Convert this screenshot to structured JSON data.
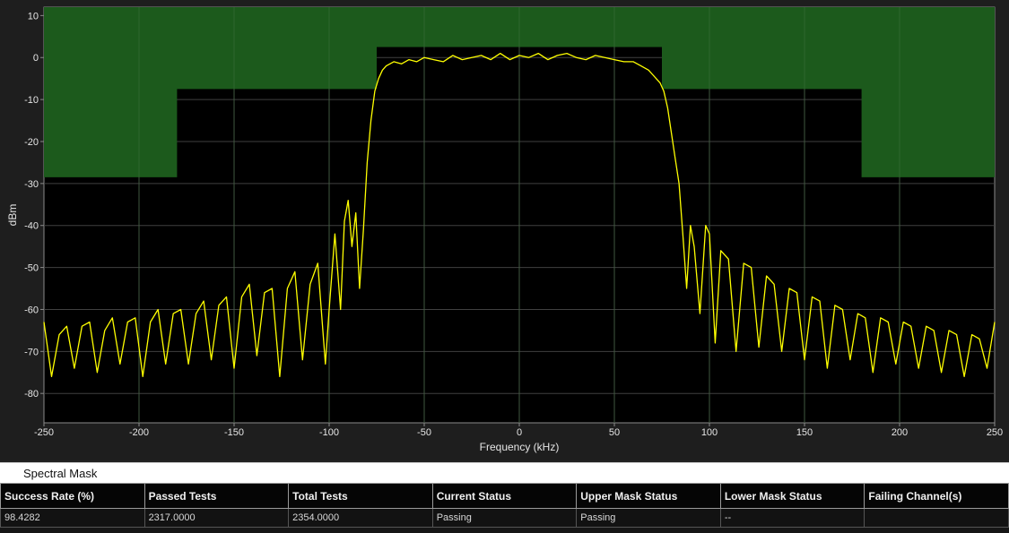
{
  "chart_data": {
    "type": "line",
    "xlabel": "Frequency (kHz)",
    "ylabel": "dBm",
    "xlim": [
      -250,
      250
    ],
    "ylim": [
      -87,
      12
    ],
    "xticks": [
      -250,
      -200,
      -150,
      -100,
      -50,
      0,
      50,
      100,
      150,
      200,
      250
    ],
    "yticks": [
      10,
      0,
      -10,
      -20,
      -30,
      -40,
      -50,
      -60,
      -70,
      -80
    ],
    "grid": true,
    "colors": {
      "trace": "#ffff00",
      "mask": "#1c5a1c",
      "plot_background": "#000000",
      "grid": "#404040"
    },
    "upper_mask": {
      "x": [
        -250,
        -180,
        -180,
        -75,
        -75,
        75,
        75,
        180,
        180,
        250
      ],
      "y": [
        -28.5,
        -28.5,
        -7.5,
        -7.5,
        2.5,
        2.5,
        -7.5,
        -7.5,
        -28.5,
        -28.5
      ]
    },
    "series": [
      {
        "x": [
          -250,
          -246,
          -242,
          -238,
          -234,
          -230,
          -226,
          -222,
          -218,
          -214,
          -210,
          -206,
          -202,
          -198,
          -194,
          -190,
          -186,
          -182,
          -178,
          -174,
          -170,
          -166,
          -162,
          -158,
          -154,
          -150,
          -146,
          -142,
          -138,
          -134,
          -130,
          -126,
          -122,
          -118,
          -114,
          -110,
          -106,
          -102,
          -100,
          -97,
          -94,
          -92,
          -90,
          -88,
          -86,
          -84,
          -82,
          -80,
          -78,
          -76,
          -74,
          -72,
          -70,
          -66,
          -62,
          -58,
          -54,
          -50,
          -45,
          -40,
          -35,
          -30,
          -25,
          -20,
          -15,
          -10,
          -5,
          0,
          5,
          10,
          15,
          20,
          25,
          30,
          35,
          40,
          45,
          50,
          55,
          60,
          64,
          68,
          70,
          72,
          74,
          75,
          76,
          78,
          80,
          82,
          84,
          86,
          88,
          90,
          92,
          95,
          98,
          100,
          103,
          106,
          110,
          114,
          118,
          122,
          126,
          130,
          134,
          138,
          142,
          146,
          150,
          154,
          158,
          162,
          166,
          170,
          174,
          178,
          182,
          186,
          190,
          194,
          198,
          202,
          206,
          210,
          214,
          218,
          222,
          226,
          230,
          234,
          238,
          242,
          246,
          250
        ],
        "values": [
          -63,
          -76,
          -66,
          -64,
          -74,
          -64,
          -63,
          -75,
          -65,
          -62,
          -73,
          -63,
          -62,
          -76,
          -63,
          -60,
          -73,
          -61,
          -60,
          -73,
          -61,
          -58,
          -72,
          -59,
          -57,
          -74,
          -57,
          -54,
          -71,
          -56,
          -55,
          -76,
          -55,
          -51,
          -72,
          -54,
          -49,
          -73,
          -60,
          -42,
          -60,
          -39,
          -34,
          -45,
          -37,
          -55,
          -41,
          -25,
          -15,
          -8,
          -5,
          -3,
          -2,
          -1,
          -1.5,
          -0.5,
          -1,
          0,
          -0.5,
          -1,
          0.5,
          -0.5,
          0,
          0.5,
          -0.5,
          1,
          -0.5,
          0.5,
          0,
          1,
          -0.5,
          0.5,
          1,
          0,
          -0.5,
          0.5,
          0,
          -0.5,
          -1,
          -1,
          -2,
          -3,
          -4,
          -5,
          -6,
          -7,
          -8,
          -12,
          -18,
          -24,
          -30,
          -42,
          -55,
          -40,
          -45,
          -61,
          -40,
          -42,
          -68,
          -46,
          -48,
          -70,
          -49,
          -50,
          -69,
          -52,
          -54,
          -70,
          -55,
          -56,
          -72,
          -57,
          -58,
          -74,
          -59,
          -60,
          -72,
          -61,
          -62,
          -75,
          -62,
          -63,
          -73,
          -63,
          -64,
          -74,
          -64,
          -65,
          -75,
          -65,
          -66,
          -76,
          -66,
          -67,
          -74,
          -63
        ]
      }
    ]
  },
  "table": {
    "title": "Spectral Mask",
    "headers": [
      "Success Rate (%)",
      "Passed Tests",
      "Total Tests",
      "Current Status",
      "Upper Mask Status",
      "Lower Mask Status",
      "Failing Channel(s)"
    ],
    "row": [
      "98.4282",
      "2317.0000",
      "2354.0000",
      "Passing",
      "Passing",
      "--",
      ""
    ]
  }
}
